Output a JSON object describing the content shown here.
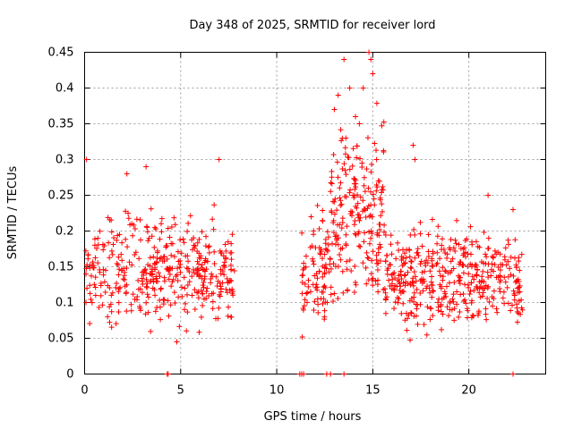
{
  "chart_data": {
    "type": "scatter",
    "title": "Day 348 of 2025, SRMTID for receiver lord",
    "xlabel": "GPS time / hours",
    "ylabel": "SRMTID / TECUs",
    "xlim": [
      0,
      24
    ],
    "ylim": [
      0,
      0.45
    ],
    "xticks": [
      0,
      5,
      10,
      15,
      20
    ],
    "yticks": [
      0,
      0.05,
      0.1,
      0.15,
      0.2,
      0.25,
      0.3,
      0.35,
      0.4,
      0.45
    ],
    "grid": true,
    "marker": "plus",
    "color": "#ff0000",
    "segments": [
      {
        "x_start": 0.05,
        "x_end": 7.8,
        "y_min": 0.045,
        "y_max": 0.3,
        "baseline": 0.145,
        "spread": 0.05,
        "count": 420
      },
      {
        "x_start": 11.3,
        "x_end": 12.8,
        "y_min": 0.045,
        "y_max": 0.25,
        "baseline": 0.15,
        "spread": 0.05,
        "count": 90
      },
      {
        "x_start": 12.8,
        "x_end": 15.6,
        "y_min": 0.07,
        "y_max": 0.45,
        "baseline": 0.22,
        "spread": 0.08,
        "count": 210
      },
      {
        "x_start": 15.6,
        "x_end": 22.8,
        "y_min": 0.045,
        "y_max": 0.33,
        "baseline": 0.135,
        "spread": 0.045,
        "count": 430
      }
    ],
    "peaks": [
      {
        "x": 13.0,
        "y": 0.37
      },
      {
        "x": 13.2,
        "y": 0.39
      },
      {
        "x": 13.5,
        "y": 0.44
      },
      {
        "x": 13.8,
        "y": 0.4
      },
      {
        "x": 14.1,
        "y": 0.36
      },
      {
        "x": 14.5,
        "y": 0.4
      },
      {
        "x": 14.8,
        "y": 0.45
      },
      {
        "x": 14.9,
        "y": 0.44
      },
      {
        "x": 15.0,
        "y": 0.42
      },
      {
        "x": 13.6,
        "y": 0.33
      },
      {
        "x": 14.3,
        "y": 0.35
      },
      {
        "x": 15.2,
        "y": 0.3
      },
      {
        "x": 17.1,
        "y": 0.32
      },
      {
        "x": 17.2,
        "y": 0.3
      },
      {
        "x": 0.1,
        "y": 0.3
      },
      {
        "x": 3.2,
        "y": 0.29
      },
      {
        "x": 7.0,
        "y": 0.3
      },
      {
        "x": 2.2,
        "y": 0.28
      },
      {
        "x": 21.0,
        "y": 0.25
      },
      {
        "x": 22.3,
        "y": 0.23
      }
    ],
    "zero_points": [
      4.3,
      4.35,
      11.2,
      11.3,
      11.4,
      12.6,
      12.8,
      13.5,
      22.3
    ]
  }
}
